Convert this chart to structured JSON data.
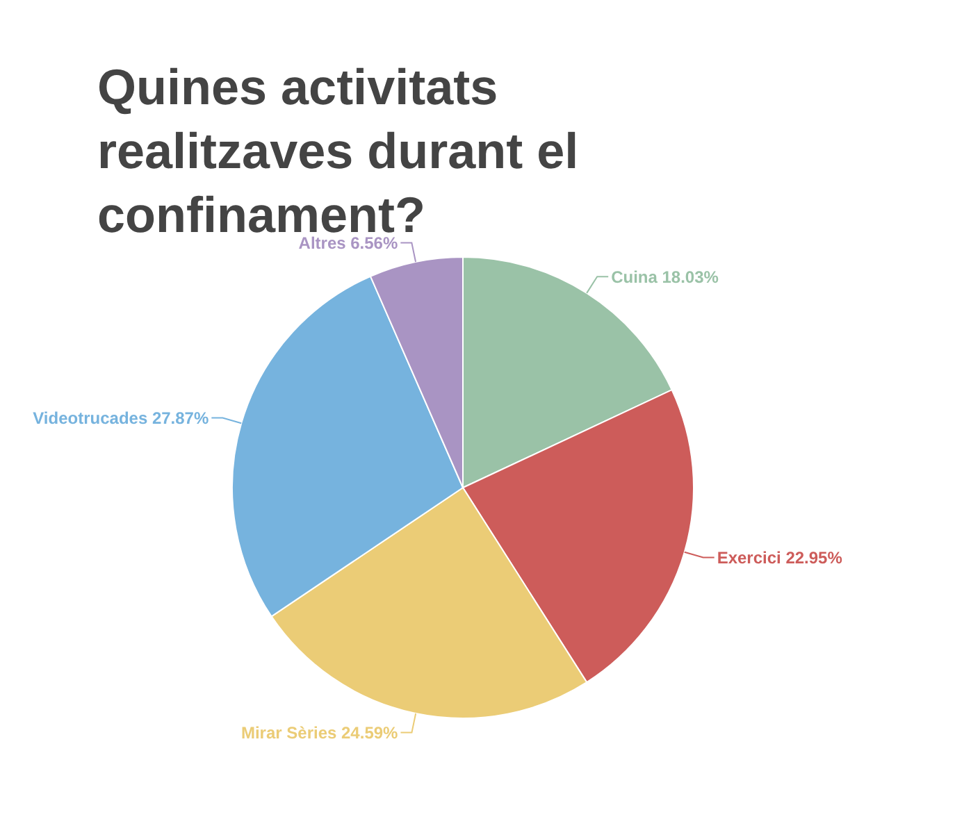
{
  "chart_data": {
    "type": "pie",
    "title": "Quines activitats realitzaves durant el confinament?",
    "categories": [
      "Cuina",
      "Exercici",
      "Mirar Sèries",
      "Videotrucades",
      "Altres"
    ],
    "values": [
      18.03,
      22.95,
      24.59,
      27.87,
      6.56
    ],
    "value_labels": [
      "18.03%",
      "22.95%",
      "24.59%",
      "27.87%",
      "6.56%"
    ],
    "colors": [
      "#9ac2a7",
      "#cd5c5a",
      "#ebcc76",
      "#76b3de",
      "#a994c3"
    ]
  }
}
